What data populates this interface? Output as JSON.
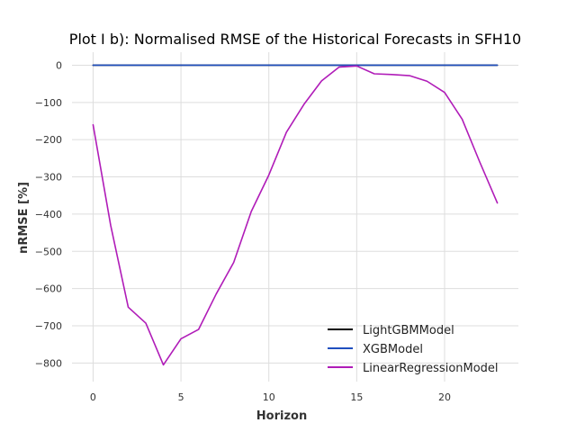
{
  "chart_data": {
    "type": "line",
    "title": "Plot I b): Normalised RMSE of the Historical Forecasts in SFH10",
    "xlabel": "Horizon",
    "ylabel": "nRMSE [%]",
    "xlim": [
      -1.2,
      24.2
    ],
    "ylim": [
      -850,
      35
    ],
    "xticks": [
      0,
      5,
      10,
      15,
      20
    ],
    "yticks": [
      0,
      -100,
      -200,
      -300,
      -400,
      -500,
      -600,
      -700,
      -800
    ],
    "grid": true,
    "legend_position": "bottom-right",
    "x": [
      0,
      1,
      2,
      3,
      4,
      5,
      6,
      7,
      8,
      9,
      10,
      11,
      12,
      13,
      14,
      15,
      16,
      17,
      18,
      19,
      20,
      21,
      22,
      23
    ],
    "series": [
      {
        "name": "LightGBMModel",
        "color": "#000000",
        "values": [
          0,
          0,
          0,
          0,
          0,
          0,
          0,
          0,
          0,
          0,
          0,
          0,
          0,
          0,
          0,
          0,
          0,
          0,
          0,
          0,
          0,
          0,
          0,
          0
        ]
      },
      {
        "name": "XGBModel",
        "color": "#1f4fbf",
        "values": [
          0,
          0,
          0,
          0,
          0,
          0,
          0,
          0,
          0,
          0,
          0,
          0,
          0,
          0,
          0,
          0,
          0,
          0,
          0,
          0,
          0,
          0,
          0,
          0
        ]
      },
      {
        "name": "LinearRegressionModel",
        "color": "#b01cb8",
        "values": [
          -160,
          -430,
          -650,
          -693,
          -805,
          -735,
          -710,
          -615,
          -530,
          -393,
          -295,
          -180,
          -105,
          -42,
          -5,
          -2,
          -23,
          -25,
          -28,
          -43,
          -73,
          -145,
          -260,
          -370
        ]
      }
    ]
  }
}
